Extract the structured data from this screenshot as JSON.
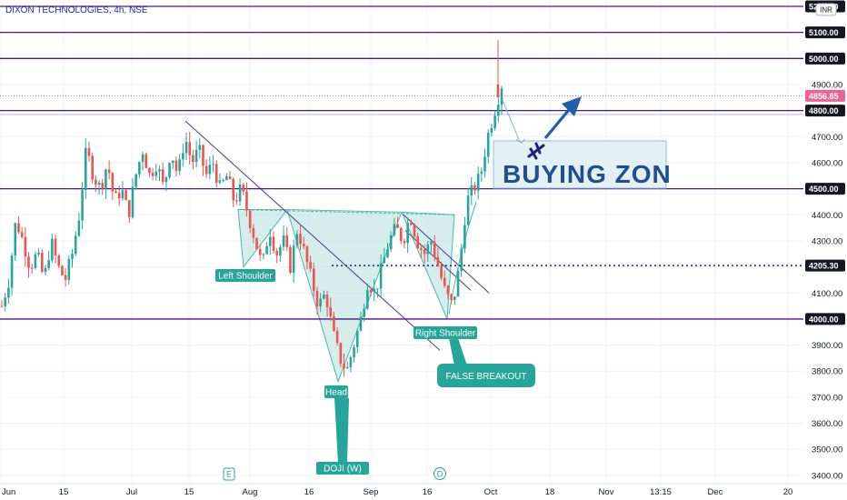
{
  "chart_data": {
    "type": "candlestick",
    "title": "DIXON TECHNOLOGIES, 4h, NSE",
    "currency": "INR",
    "ylim": [
      3380,
      5230
    ],
    "y_ticks": [
      3400,
      3500,
      3600,
      3700,
      3800,
      3900,
      4100,
      4200,
      4300,
      4400,
      4600,
      4700,
      4900
    ],
    "x_tick_labels": [
      "Jun",
      "15",
      "Jul",
      "15",
      "Aug",
      "16",
      "Sep",
      "16",
      "Oct",
      "18",
      "Nov",
      "13:15",
      "Dec",
      "20"
    ],
    "horizontal_levels": [
      {
        "value": 5200,
        "label": "5200.00"
      },
      {
        "value": 5100,
        "label": "5100.00"
      },
      {
        "value": 5000,
        "label": "5000.00"
      },
      {
        "value": 4800,
        "label": "4800.00"
      },
      {
        "value": 4500,
        "label": "4500.00"
      },
      {
        "value": 4000,
        "label": "4000.00"
      }
    ],
    "dotted_level": {
      "value": 4205.3,
      "label": "4205.30"
    },
    "last_price": {
      "value": 4856.85,
      "label": "4856.85"
    },
    "price_path": [
      4050,
      4150,
      4380,
      4300,
      4200,
      4250,
      4150,
      4300,
      4200,
      4150,
      4250,
      4400,
      4650,
      4550,
      4500,
      4600,
      4450,
      4500,
      4400,
      4550,
      4650,
      4550,
      4600,
      4500,
      4650,
      4550,
      4700,
      4600,
      4650,
      4550,
      4600,
      4500,
      4550,
      4450,
      4500,
      4400,
      4300,
      4200,
      4350,
      4250,
      4300,
      4200,
      4350,
      4250,
      4150,
      4050,
      4100,
      3950,
      3850,
      3800,
      3900,
      4000,
      4150,
      4100,
      4200,
      4300,
      4350,
      4300,
      4400,
      4300,
      4250,
      4300,
      4200,
      4100,
      4050,
      4200,
      4450,
      4500,
      4550,
      4700,
      4800,
      4900
    ],
    "annotations": {
      "left_shoulder": "Left Shoulder",
      "head": "Head",
      "right_shoulder": "Right Shoulder",
      "false_breakout": "FALSE BREAKOUT",
      "doji": "DOJI (W)",
      "buying_zone": "BUYING ZON"
    },
    "event_markers": [
      "E",
      "D"
    ],
    "colors": {
      "up": "#26a69a",
      "down": "#ef5350",
      "levels": "#4a148c",
      "pattern_fill": "#b2dfdb",
      "callout": "#26a69a",
      "arrow": "#1f5fae"
    }
  }
}
